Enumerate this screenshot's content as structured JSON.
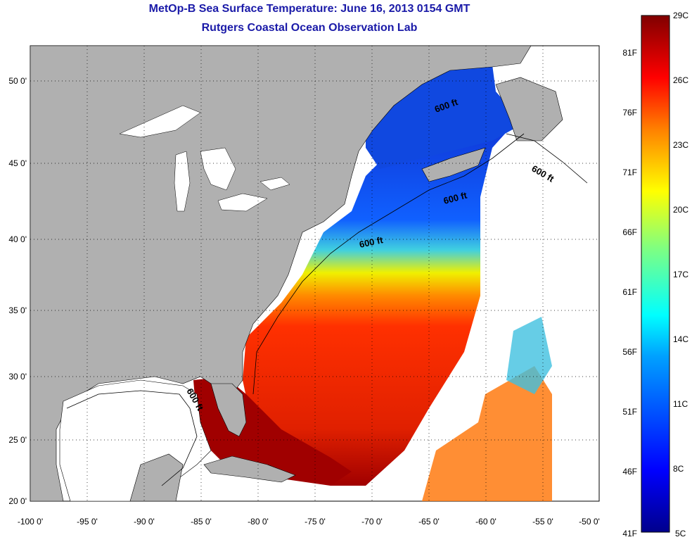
{
  "title": {
    "line1": "MetOp-B Sea Surface Temperature:  June 16, 2013 0154 GMT",
    "line2": "Rutgers Coastal Ocean Observation Lab"
  },
  "axes": {
    "lat_ticks": [
      "50 0'",
      "45 0'",
      "40 0'",
      "35 0'",
      "30 0'",
      "25 0'",
      "20 0'"
    ],
    "lon_ticks": [
      "-100 0'",
      "-95 0'",
      "-90 0'",
      "-85 0'",
      "-80 0'",
      "-75 0'",
      "-70 0'",
      "-65 0'",
      "-60 0'",
      "-55 0'",
      "-50 0'"
    ],
    "lat_range": [
      20,
      52.5
    ],
    "lon_range": [
      -100,
      -50
    ]
  },
  "colorbar": {
    "celsius_labels": [
      "29C",
      "26C",
      "23C",
      "20C",
      "17C",
      "14C",
      "11C",
      "8C",
      "5C"
    ],
    "fahrenheit_labels": [
      "81F",
      "76F",
      "71F",
      "66F",
      "61F",
      "56F",
      "51F",
      "46F",
      "41F"
    ],
    "colors": [
      "#800000",
      "#ff0000",
      "#ff8000",
      "#ffff00",
      "#80ff80",
      "#00ffff",
      "#0080ff",
      "#0000ff",
      "#000080"
    ]
  },
  "contours": {
    "label": "600 ft"
  },
  "colors": {
    "land": "#b0b0b0",
    "no_data": "#ffffff",
    "title": "#1a1aa8"
  }
}
